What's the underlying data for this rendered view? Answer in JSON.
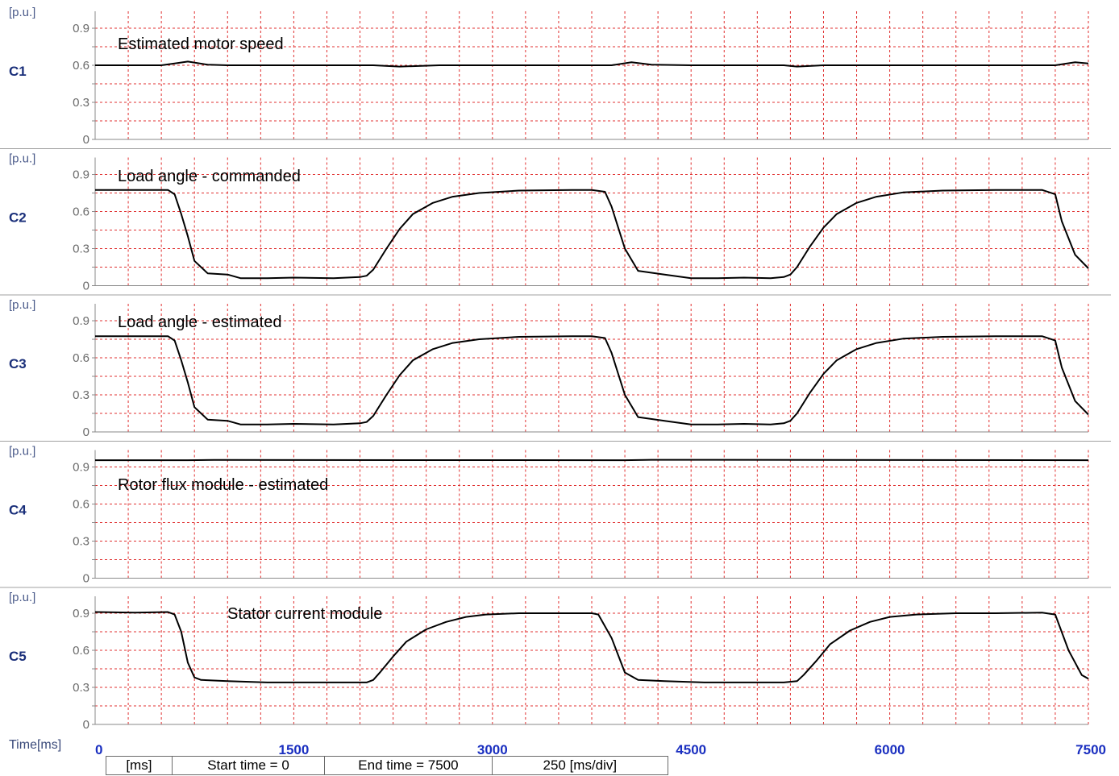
{
  "time_axis": {
    "label": "Time[ms]",
    "ticks": [
      "0",
      "1500",
      "3000",
      "4500",
      "6000",
      "7500"
    ]
  },
  "info_bar": {
    "unit": "[ms]",
    "start": "Start time = 0",
    "end": "End time = 7500",
    "div": "250  [ms/div]"
  },
  "colors": {
    "grid": "#e03030",
    "trace": "#000000",
    "channel_label": "#1a2f7a",
    "time_tick": "#1a2fc0"
  },
  "chart_data": [
    {
      "type": "line",
      "channel": "C1",
      "unit": "[p.u.]",
      "title": "Estimated motor speed",
      "ylim": [
        0,
        1.05
      ],
      "yticks": [
        "0.9",
        "0.6",
        "0.3",
        "0"
      ],
      "xlim": [
        0,
        7500
      ],
      "x": [
        0,
        500,
        600,
        700,
        850,
        1000,
        1500,
        2100,
        2300,
        2600,
        3000,
        3700,
        3900,
        4050,
        4200,
        4500,
        5200,
        5300,
        5500,
        5800,
        6200,
        7100,
        7250,
        7400,
        7500
      ],
      "y": [
        0.6,
        0.6,
        0.615,
        0.63,
        0.605,
        0.6,
        0.6,
        0.6,
        0.59,
        0.6,
        0.6,
        0.6,
        0.6,
        0.625,
        0.605,
        0.6,
        0.6,
        0.59,
        0.6,
        0.6,
        0.6,
        0.6,
        0.6,
        0.625,
        0.615
      ]
    },
    {
      "type": "line",
      "channel": "C2",
      "unit": "[p.u.]",
      "title": "Load angle - commanded",
      "ylim": [
        0,
        1.05
      ],
      "yticks": [
        "0.9",
        "0.6",
        "0.3",
        "0"
      ],
      "xlim": [
        0,
        7500
      ],
      "x": [
        0,
        550,
        600,
        650,
        700,
        750,
        850,
        1000,
        1100,
        1300,
        1500,
        1800,
        2000,
        2050,
        2100,
        2200,
        2300,
        2400,
        2550,
        2700,
        2900,
        3200,
        3600,
        3750,
        3850,
        3900,
        4000,
        4100,
        4300,
        4500,
        4700,
        4900,
        5100,
        5200,
        5250,
        5300,
        5400,
        5500,
        5600,
        5750,
        5900,
        6100,
        6400,
        6800,
        7150,
        7250,
        7300,
        7400,
        7500
      ],
      "y": [
        0.775,
        0.775,
        0.74,
        0.58,
        0.4,
        0.2,
        0.1,
        0.09,
        0.06,
        0.06,
        0.065,
        0.06,
        0.07,
        0.08,
        0.13,
        0.3,
        0.46,
        0.58,
        0.67,
        0.72,
        0.75,
        0.77,
        0.775,
        0.775,
        0.76,
        0.64,
        0.3,
        0.12,
        0.09,
        0.06,
        0.06,
        0.065,
        0.06,
        0.07,
        0.09,
        0.15,
        0.32,
        0.47,
        0.58,
        0.67,
        0.72,
        0.755,
        0.77,
        0.775,
        0.775,
        0.74,
        0.52,
        0.25,
        0.14
      ]
    },
    {
      "type": "line",
      "channel": "C3",
      "unit": "[p.u.]",
      "title": "Load angle - estimated",
      "ylim": [
        0,
        1.05
      ],
      "yticks": [
        "0.9",
        "0.6",
        "0.3",
        "0"
      ],
      "xlim": [
        0,
        7500
      ],
      "x": [
        0,
        550,
        600,
        650,
        700,
        750,
        850,
        1000,
        1100,
        1300,
        1500,
        1800,
        2000,
        2050,
        2100,
        2200,
        2300,
        2400,
        2550,
        2700,
        2900,
        3200,
        3600,
        3750,
        3850,
        3900,
        4000,
        4100,
        4300,
        4500,
        4700,
        4900,
        5100,
        5200,
        5250,
        5300,
        5400,
        5500,
        5600,
        5750,
        5900,
        6100,
        6400,
        6800,
        7150,
        7250,
        7300,
        7400,
        7500
      ],
      "y": [
        0.775,
        0.775,
        0.74,
        0.58,
        0.4,
        0.2,
        0.1,
        0.09,
        0.06,
        0.06,
        0.065,
        0.06,
        0.07,
        0.08,
        0.13,
        0.3,
        0.46,
        0.58,
        0.67,
        0.72,
        0.75,
        0.77,
        0.775,
        0.775,
        0.76,
        0.64,
        0.3,
        0.12,
        0.09,
        0.06,
        0.06,
        0.065,
        0.06,
        0.07,
        0.09,
        0.15,
        0.32,
        0.47,
        0.58,
        0.67,
        0.72,
        0.755,
        0.77,
        0.775,
        0.775,
        0.74,
        0.52,
        0.25,
        0.14
      ]
    },
    {
      "type": "line",
      "channel": "C4",
      "unit": "[p.u.]",
      "title": "Rotor flux module - estimated",
      "ylim": [
        0,
        1.05
      ],
      "yticks": [
        "0.9",
        "0.6",
        "0.3",
        "0"
      ],
      "xlim": [
        0,
        7500
      ],
      "x": [
        0,
        700,
        900,
        4000,
        4200,
        7500
      ],
      "y": [
        0.955,
        0.955,
        0.957,
        0.955,
        0.958,
        0.955
      ]
    },
    {
      "type": "line",
      "channel": "C5",
      "unit": "[p.u.]",
      "title": "Stator current module",
      "ylim": [
        0,
        1.05
      ],
      "yticks": [
        "0.9",
        "0.6",
        "0.3",
        "0"
      ],
      "xlim": [
        0,
        7500
      ],
      "x": [
        0,
        300,
        550,
        600,
        650,
        700,
        750,
        800,
        1000,
        1300,
        1600,
        1900,
        2050,
        2100,
        2150,
        2250,
        2350,
        2500,
        2650,
        2800,
        2950,
        3200,
        3500,
        3750,
        3800,
        3900,
        4000,
        4100,
        4300,
        4600,
        4900,
        5200,
        5300,
        5350,
        5450,
        5550,
        5700,
        5850,
        6000,
        6200,
        6500,
        6800,
        7150,
        7250,
        7350,
        7450,
        7500
      ],
      "y": [
        0.91,
        0.905,
        0.91,
        0.89,
        0.75,
        0.5,
        0.38,
        0.36,
        0.35,
        0.34,
        0.34,
        0.34,
        0.34,
        0.36,
        0.42,
        0.55,
        0.67,
        0.77,
        0.83,
        0.87,
        0.89,
        0.9,
        0.9,
        0.9,
        0.89,
        0.7,
        0.42,
        0.36,
        0.35,
        0.34,
        0.34,
        0.34,
        0.35,
        0.4,
        0.52,
        0.65,
        0.76,
        0.83,
        0.87,
        0.89,
        0.9,
        0.9,
        0.905,
        0.89,
        0.6,
        0.4,
        0.37
      ]
    }
  ]
}
